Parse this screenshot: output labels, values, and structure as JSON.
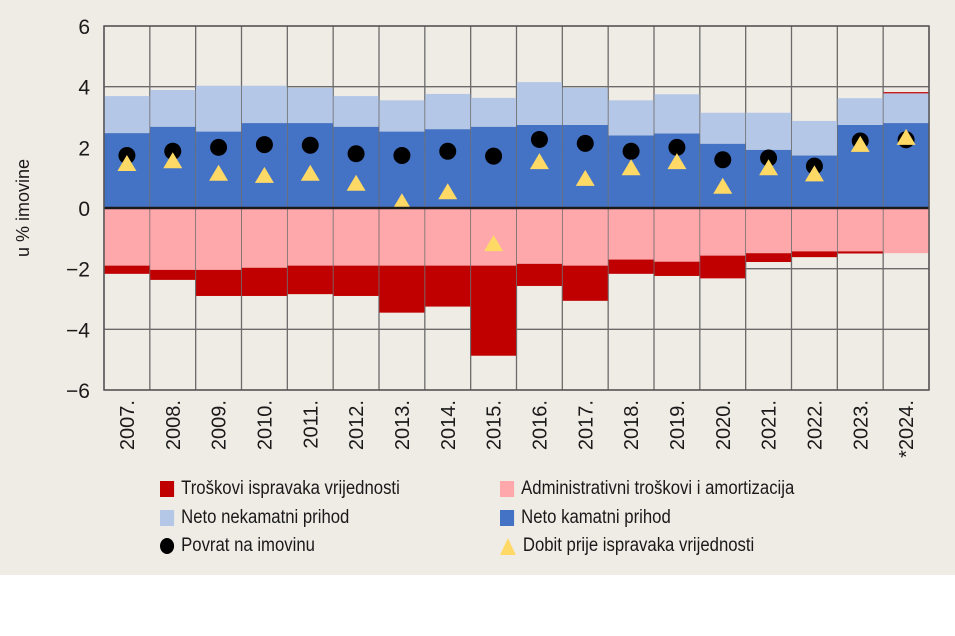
{
  "chart_data": {
    "type": "bar",
    "stacked": true,
    "title": "",
    "xlabel": "",
    "ylabel": "u % imovine",
    "ylim": [
      -6,
      6
    ],
    "yticks": [
      6,
      4,
      2,
      0,
      -2,
      -4,
      -6
    ],
    "ytick_labels": [
      "6",
      "4",
      "2",
      "0",
      "−2",
      "−4",
      "−6"
    ],
    "grid": true,
    "legend_position": "bottom",
    "categories": [
      "2007.",
      "2008.",
      "2009.",
      "2010.",
      "2011.",
      "2012.",
      "2013.",
      "2014.",
      "2015.",
      "2016.",
      "2017.",
      "2018.",
      "2019.",
      "2020.",
      "2021.",
      "2022.",
      "2023.",
      "*2024."
    ],
    "series": [
      {
        "name": "Neto kamatni prihod",
        "kind": "bar",
        "color": "#4472c4",
        "values": [
          2.47,
          2.68,
          2.52,
          2.8,
          2.8,
          2.68,
          2.52,
          2.6,
          2.68,
          2.74,
          2.74,
          2.39,
          2.46,
          2.12,
          1.92,
          1.73,
          2.74,
          2.8
        ]
      },
      {
        "name": "Neto nekamatni prihod",
        "kind": "bar",
        "color": "#b4c7e7",
        "values": [
          1.22,
          1.21,
          1.51,
          1.23,
          1.16,
          1.01,
          1.03,
          1.16,
          0.95,
          1.41,
          1.22,
          1.16,
          1.29,
          1.02,
          1.22,
          1.14,
          0.88,
          0.98
        ]
      },
      {
        "name": "Administrativni troškovi i amortizacija",
        "kind": "bar",
        "color": "#ffa8ab",
        "values": [
          -1.9,
          -2.04,
          -2.04,
          -1.97,
          -1.9,
          -1.9,
          -1.9,
          -1.9,
          -1.9,
          -1.84,
          -1.9,
          -1.7,
          -1.77,
          -1.57,
          -1.49,
          -1.43,
          -1.43,
          -1.49
        ]
      },
      {
        "name": "Troškovi ispravaka vrijednosti",
        "kind": "bar",
        "color": "#c00000",
        "values": [
          -0.27,
          -0.33,
          -0.86,
          -0.93,
          -0.94,
          -1.0,
          -1.55,
          -1.35,
          -2.97,
          -0.73,
          -1.16,
          -0.47,
          -0.47,
          -0.75,
          -0.29,
          -0.19,
          -0.07,
          0.04
        ]
      },
      {
        "name": "Povrat na imovinu",
        "kind": "marker",
        "marker": "circle",
        "color": "#000000",
        "values": [
          1.73,
          1.87,
          2.0,
          2.09,
          2.07,
          1.79,
          1.73,
          1.87,
          1.71,
          2.26,
          2.13,
          1.87,
          2.0,
          1.59,
          1.65,
          1.38,
          2.21,
          2.25
        ]
      },
      {
        "name": "Dobit prije ispravaka vrijednosti",
        "kind": "marker",
        "marker": "triangle",
        "color": "#ffd966",
        "values": [
          1.42,
          1.51,
          1.1,
          1.03,
          1.1,
          0.77,
          0.16,
          0.49,
          -1.22,
          1.48,
          0.93,
          1.28,
          1.48,
          0.67,
          1.28,
          1.08,
          2.05,
          2.28
        ]
      }
    ]
  },
  "legend": {
    "items": [
      {
        "label": "Troškovi ispravaka vrijednosti",
        "symbol": "square",
        "color": "#c00000"
      },
      {
        "label": "Administrativni troškovi i amortizacija",
        "symbol": "square",
        "color": "#ffa8ab"
      },
      {
        "label": "Neto nekamatni prihod",
        "symbol": "square",
        "color": "#b4c7e7"
      },
      {
        "label": "Neto kamatni prihod",
        "symbol": "square",
        "color": "#4472c4"
      },
      {
        "label": "Povrat na imovinu",
        "symbol": "circle",
        "color": "#000000"
      },
      {
        "label": "Dobit prije ispravaka vrijednosti",
        "symbol": "triangle",
        "color": "#ffd966"
      }
    ]
  }
}
